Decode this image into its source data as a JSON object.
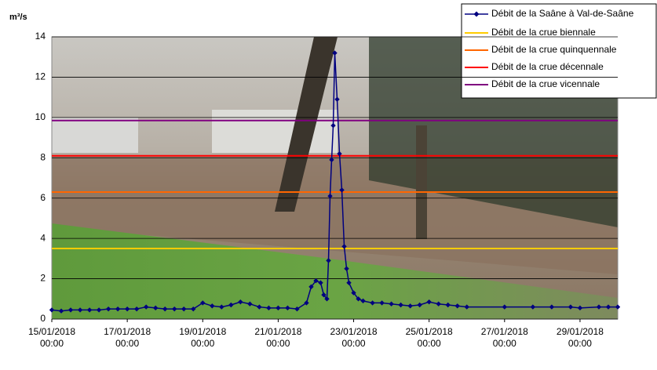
{
  "chart_data": {
    "type": "line",
    "y_label": "m³/s",
    "x": [
      "2018-01-15 00:00",
      "2018-01-15 06:00",
      "2018-01-15 12:00",
      "2018-01-15 18:00",
      "2018-01-16 00:00",
      "2018-01-16 06:00",
      "2018-01-16 12:00",
      "2018-01-16 18:00",
      "2018-01-17 00:00",
      "2018-01-17 06:00",
      "2018-01-17 12:00",
      "2018-01-17 18:00",
      "2018-01-18 00:00",
      "2018-01-18 06:00",
      "2018-01-18 12:00",
      "2018-01-18 18:00",
      "2018-01-19 00:00",
      "2018-01-19 06:00",
      "2018-01-19 12:00",
      "2018-01-19 18:00",
      "2018-01-20 00:00",
      "2018-01-20 06:00",
      "2018-01-20 12:00",
      "2018-01-20 18:00",
      "2018-01-21 00:00",
      "2018-01-21 06:00",
      "2018-01-21 12:00",
      "2018-01-21 18:00",
      "2018-01-21 21:00",
      "2018-01-22 00:00",
      "2018-01-22 03:00",
      "2018-01-22 05:00",
      "2018-01-22 07:00",
      "2018-01-22 08:00",
      "2018-01-22 09:00",
      "2018-01-22 10:00",
      "2018-01-22 11:00",
      "2018-01-22 12:00",
      "2018-01-22 13:30",
      "2018-01-22 15:00",
      "2018-01-22 16:30",
      "2018-01-22 18:00",
      "2018-01-22 19:30",
      "2018-01-22 21:00",
      "2018-01-23 00:00",
      "2018-01-23 03:00",
      "2018-01-23 06:00",
      "2018-01-23 12:00",
      "2018-01-23 18:00",
      "2018-01-24 00:00",
      "2018-01-24 06:00",
      "2018-01-24 12:00",
      "2018-01-24 18:00",
      "2018-01-25 00:00",
      "2018-01-25 06:00",
      "2018-01-25 12:00",
      "2018-01-25 18:00",
      "2018-01-26 00:00",
      "2018-01-27 00:00",
      "2018-01-27 18:00",
      "2018-01-28 06:00",
      "2018-01-28 18:00",
      "2018-01-29 00:00",
      "2018-01-29 12:00",
      "2018-01-29 18:00",
      "2018-01-30 00:00"
    ],
    "series": [
      {
        "name": "Débit de la Saâne à Val-de-Saâne",
        "color": "#000080",
        "values": [
          0.45,
          0.4,
          0.45,
          0.45,
          0.45,
          0.45,
          0.5,
          0.5,
          0.5,
          0.5,
          0.6,
          0.55,
          0.5,
          0.5,
          0.5,
          0.5,
          0.8,
          0.65,
          0.6,
          0.7,
          0.85,
          0.75,
          0.6,
          0.55,
          0.55,
          0.55,
          0.5,
          0.8,
          1.6,
          1.9,
          1.8,
          1.2,
          1.0,
          2.9,
          6.1,
          7.9,
          9.6,
          13.2,
          10.9,
          8.2,
          6.4,
          3.6,
          2.5,
          1.8,
          1.3,
          1.0,
          0.9,
          0.8,
          0.8,
          0.75,
          0.7,
          0.65,
          0.7,
          0.85,
          0.75,
          0.7,
          0.65,
          0.6,
          0.6,
          0.6,
          0.6,
          0.6,
          0.55,
          0.6,
          0.6,
          0.6
        ]
      }
    ],
    "reference_lines": [
      {
        "name": "Débit de la crue biennale",
        "color": "#ffcc00",
        "value": 3.5
      },
      {
        "name": "Débit de la crue quinquennale",
        "color": "#ff6600",
        "value": 6.3
      },
      {
        "name": "Débit de la crue décennale",
        "color": "#ff0000",
        "value": 8.1
      },
      {
        "name": "Débit de la crue vicennale",
        "color": "#800080",
        "value": 9.85
      }
    ],
    "xlim": [
      "2018-01-15 00:00",
      "2018-01-30 00:00"
    ],
    "xticks": [
      {
        "value": "2018-01-15 00:00",
        "label": "15/01/2018 00:00"
      },
      {
        "value": "2018-01-17 00:00",
        "label": "17/01/2018 00:00"
      },
      {
        "value": "2018-01-19 00:00",
        "label": "19/01/2018 00:00"
      },
      {
        "value": "2018-01-21 00:00",
        "label": "21/01/2018 00:00"
      },
      {
        "value": "2018-01-23 00:00",
        "label": "23/01/2018 00:00"
      },
      {
        "value": "2018-01-25 00:00",
        "label": "25/01/2018 00:00"
      },
      {
        "value": "2018-01-27 00:00",
        "label": "27/01/2018 00:00"
      },
      {
        "value": "2018-01-29 00:00",
        "label": "29/01/2018 00:00"
      }
    ],
    "ylim": [
      0,
      14
    ],
    "yticks": [
      0,
      2,
      4,
      6,
      8,
      10,
      12,
      14
    ],
    "grid": true
  }
}
